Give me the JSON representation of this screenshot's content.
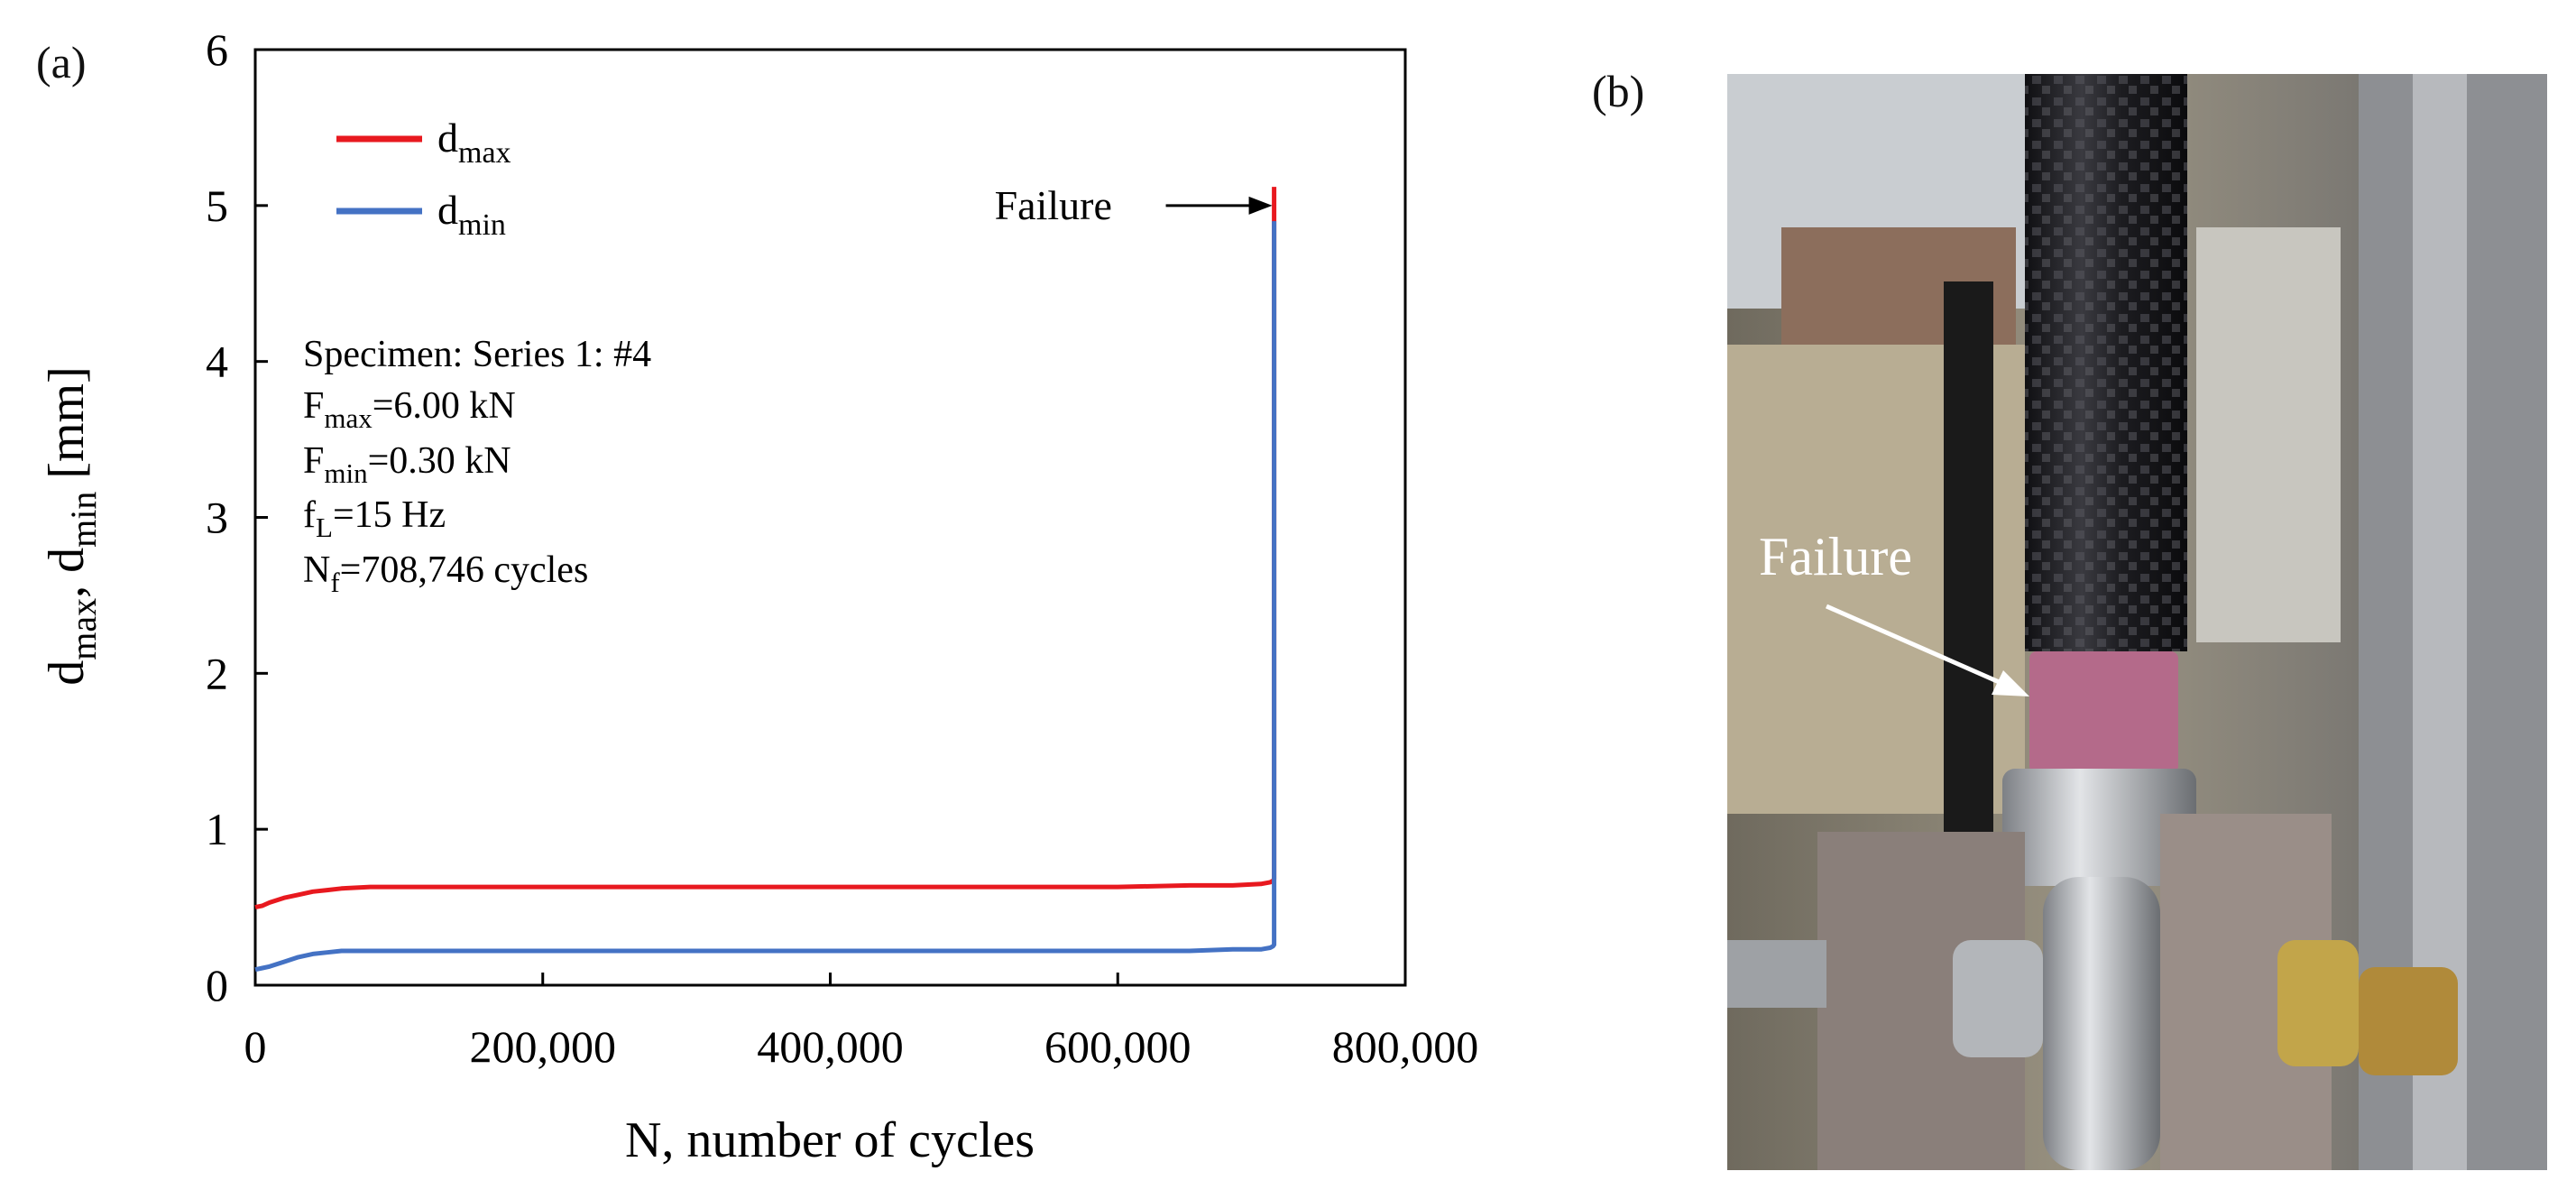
{
  "panels": {
    "a": "(a)",
    "b": "(b)"
  },
  "chart_data": {
    "type": "line",
    "xlabel": "N, number of cycles",
    "ylabel": "d_max, d_min [mm]",
    "xlim": [
      0,
      800000
    ],
    "ylim": [
      0,
      6
    ],
    "xticks": [
      0,
      200000,
      400000,
      600000,
      800000
    ],
    "xtick_labels": [
      "0",
      "200,000",
      "400,000",
      "600,000",
      "800,000"
    ],
    "yticks": [
      0,
      1,
      2,
      3,
      4,
      5,
      6
    ],
    "ytick_labels": [
      "0",
      "1",
      "2",
      "3",
      "4",
      "5",
      "6"
    ],
    "grid": false,
    "legend_position": "top-left",
    "series": [
      {
        "name": "d_max",
        "color": "#e8191f",
        "x": [
          0,
          5000,
          10000,
          20000,
          30000,
          40000,
          50000,
          60000,
          80000,
          100000,
          150000,
          200000,
          250000,
          300000,
          350000,
          400000,
          450000,
          500000,
          550000,
          600000,
          650000,
          680000,
          700000,
          706000,
          708000,
          708746,
          708746
        ],
        "y": [
          0.5,
          0.51,
          0.53,
          0.56,
          0.58,
          0.6,
          0.61,
          0.62,
          0.63,
          0.63,
          0.63,
          0.63,
          0.63,
          0.63,
          0.63,
          0.63,
          0.63,
          0.63,
          0.63,
          0.63,
          0.64,
          0.64,
          0.65,
          0.66,
          0.67,
          0.68,
          5.12
        ]
      },
      {
        "name": "d_min",
        "color": "#4472c4",
        "x": [
          0,
          5000,
          10000,
          20000,
          30000,
          40000,
          50000,
          60000,
          80000,
          100000,
          150000,
          200000,
          250000,
          300000,
          350000,
          400000,
          450000,
          500000,
          550000,
          600000,
          650000,
          680000,
          700000,
          706000,
          708000,
          708746,
          708746
        ],
        "y": [
          0.1,
          0.11,
          0.12,
          0.15,
          0.18,
          0.2,
          0.21,
          0.22,
          0.22,
          0.22,
          0.22,
          0.22,
          0.22,
          0.22,
          0.22,
          0.22,
          0.22,
          0.22,
          0.22,
          0.22,
          0.22,
          0.23,
          0.23,
          0.24,
          0.25,
          0.26,
          4.9
        ]
      }
    ],
    "annotation": {
      "text": "Failure",
      "x": 708746,
      "y": 5.0
    },
    "info": {
      "line1": "Specimen: Series 1: #4",
      "Fmax": {
        "base": "F",
        "sub": "max",
        "rest": "=6.00 kN"
      },
      "Fmin": {
        "base": "F",
        "sub": "min",
        "rest": "=0.30 kN"
      },
      "fL": {
        "base": "f",
        "sub": "L",
        "rest": "=15 Hz"
      },
      "Nf": {
        "base": "N",
        "sub": "f",
        "rest": "=708,746 cycles"
      }
    },
    "legend": {
      "dmax": {
        "base": "d",
        "sub": "max"
      },
      "dmin": {
        "base": "d",
        "sub": "min"
      }
    },
    "ylabel_parts": {
      "d1": "d",
      "s1": "max",
      "sep": ", d",
      "s2": "min",
      "unit": " [mm]"
    }
  },
  "photo": {
    "failure_label": "Failure",
    "colors": {
      "carbon_tube": "#1e1e22",
      "pink_collar": "#b46a8a",
      "steel": "#b9bcc0",
      "background": "#8a8070"
    }
  }
}
